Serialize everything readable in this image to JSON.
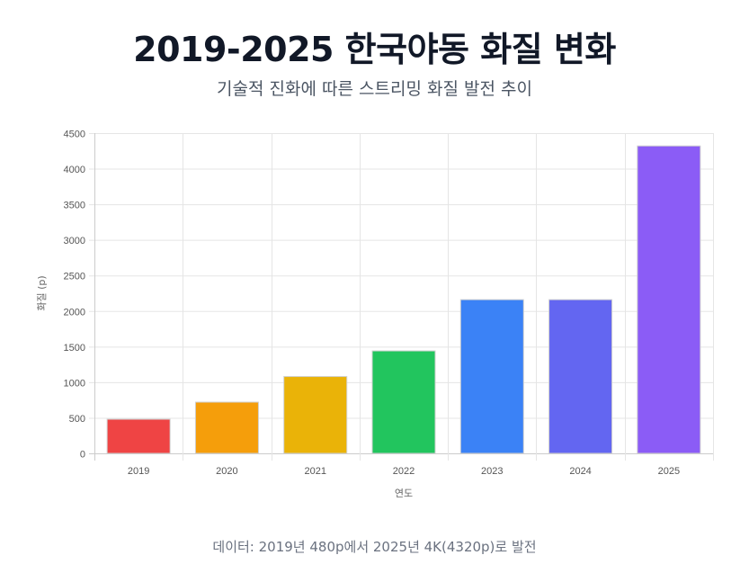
{
  "header": {
    "title": "2019-2025 한국야동 화질 변화",
    "subtitle": "기술적 진화에 따른 스트리밍 화질 발전 추이"
  },
  "footer": {
    "note": "데이터: 2019년 480p에서 2025년 4K(4320p)로 발전"
  },
  "chart_data": {
    "type": "bar",
    "categories": [
      "2019",
      "2020",
      "2021",
      "2022",
      "2023",
      "2024",
      "2025"
    ],
    "values": [
      480,
      720,
      1080,
      1440,
      2160,
      2160,
      4320
    ],
    "colors": [
      "#ef4444",
      "#f59e0b",
      "#eab308",
      "#22c55e",
      "#3b82f6",
      "#6366f1",
      "#8b5cf6"
    ],
    "xlabel": "연도",
    "ylabel": "화질 (p)",
    "ylim": [
      0,
      4500
    ],
    "yticks": [
      0,
      500,
      1000,
      1500,
      2000,
      2500,
      3000,
      3500,
      4000,
      4500
    ],
    "grid": true,
    "legend": "none"
  }
}
